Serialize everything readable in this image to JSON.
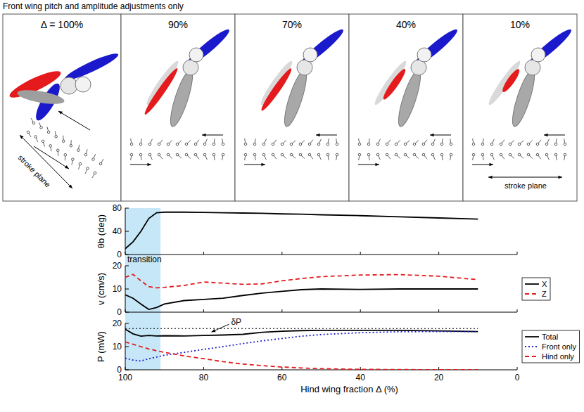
{
  "diagram": {
    "title": "Front wing pitch and amplitude adjustments only",
    "panels": [
      {
        "label": "Δ = 100%",
        "stroke_plane": "stroke plane"
      },
      {
        "label": "90%"
      },
      {
        "label": "70%"
      },
      {
        "label": "40%"
      },
      {
        "label": "10%",
        "stroke_plane": "stroke plane"
      }
    ]
  },
  "chart_data": [
    {
      "type": "line",
      "y_label": "θb (deg)",
      "x": [
        100,
        98,
        96,
        94,
        92,
        90,
        85,
        80,
        75,
        70,
        65,
        60,
        55,
        50,
        40,
        30,
        20,
        10
      ],
      "xlim": [
        100,
        0
      ],
      "xticks": [
        100,
        80,
        60,
        40,
        20,
        0
      ],
      "ylim": [
        0,
        80
      ],
      "yticks": [
        0,
        40,
        80
      ],
      "tick_labels": "y",
      "highlight": {
        "from": 100,
        "to": 91,
        "label": "transition",
        "color": "#c6e7f7"
      },
      "series": [
        {
          "color": "#000000",
          "line_style": "solid",
          "values": [
            10,
            22,
            40,
            62,
            72,
            73,
            73,
            72.5,
            72,
            71.5,
            71,
            70,
            69.5,
            68.5,
            67,
            65,
            63,
            61
          ]
        }
      ]
    },
    {
      "type": "line",
      "y_label": "v (cm/s)",
      "x": [
        100,
        98,
        96,
        94,
        92,
        90,
        85,
        80,
        75,
        70,
        65,
        60,
        55,
        50,
        40,
        30,
        20,
        10
      ],
      "xlim": [
        100,
        0
      ],
      "xticks": [
        100,
        80,
        60,
        40,
        20,
        0
      ],
      "ylim": [
        0,
        20
      ],
      "yticks": [
        0,
        10,
        20
      ],
      "tick_labels": "y",
      "legend": "right",
      "series": [
        {
          "name": "X",
          "color": "#000000",
          "line_style": "solid",
          "values": [
            7.5,
            6,
            3.5,
            1.2,
            2,
            3.5,
            5,
            5.5,
            6,
            7.2,
            8.2,
            9,
            9.7,
            10,
            9.8,
            10,
            10,
            10
          ]
        },
        {
          "name": "Z",
          "color": "#e31a1c",
          "line_style": "dashed",
          "values": [
            15,
            16.3,
            13.5,
            11,
            10.5,
            10.7,
            11.5,
            13,
            12.5,
            12,
            12.2,
            13.5,
            14.5,
            15.3,
            16,
            16.2,
            15.5,
            14
          ]
        }
      ]
    },
    {
      "type": "line",
      "y_label": "P (mW)",
      "x_label": "Hind wing fraction Δ (%)",
      "x": [
        100,
        98,
        96,
        94,
        92,
        90,
        85,
        80,
        75,
        70,
        65,
        60,
        55,
        50,
        40,
        30,
        20,
        10
      ],
      "xlim": [
        100,
        0
      ],
      "xticks": [
        100,
        80,
        60,
        40,
        20,
        0
      ],
      "ylim": [
        0,
        20
      ],
      "yticks": [
        0,
        10,
        20
      ],
      "legend": "right",
      "annotations": [
        {
          "text": "δP",
          "y": 17.8,
          "line_style": "dotted"
        }
      ],
      "series": [
        {
          "name": "Total",
          "color": "#000000",
          "line_style": "solid",
          "values": [
            17.5,
            15.5,
            14.5,
            14.8,
            14.6,
            14.7,
            14.6,
            14.8,
            15,
            15.3,
            16.2,
            16.6,
            16.9,
            17,
            17,
            17,
            16.8,
            16.5
          ]
        },
        {
          "name": "Front only",
          "color": "#1f1fcc",
          "line_style": "dotted",
          "values": [
            5,
            4.2,
            3.8,
            4.8,
            5.5,
            6.3,
            7.5,
            8.8,
            10,
            11.3,
            12.5,
            13.5,
            14.5,
            15.2,
            16,
            16.4,
            16.5,
            16.5
          ]
        },
        {
          "name": "Hind only",
          "color": "#e31a1c",
          "line_style": "dashed",
          "values": [
            12,
            11,
            10,
            9,
            8.2,
            7.5,
            6,
            4.8,
            3.5,
            2.5,
            1.8,
            1.2,
            0.8,
            0.5,
            0.2,
            0.1,
            0,
            0
          ]
        }
      ]
    }
  ]
}
